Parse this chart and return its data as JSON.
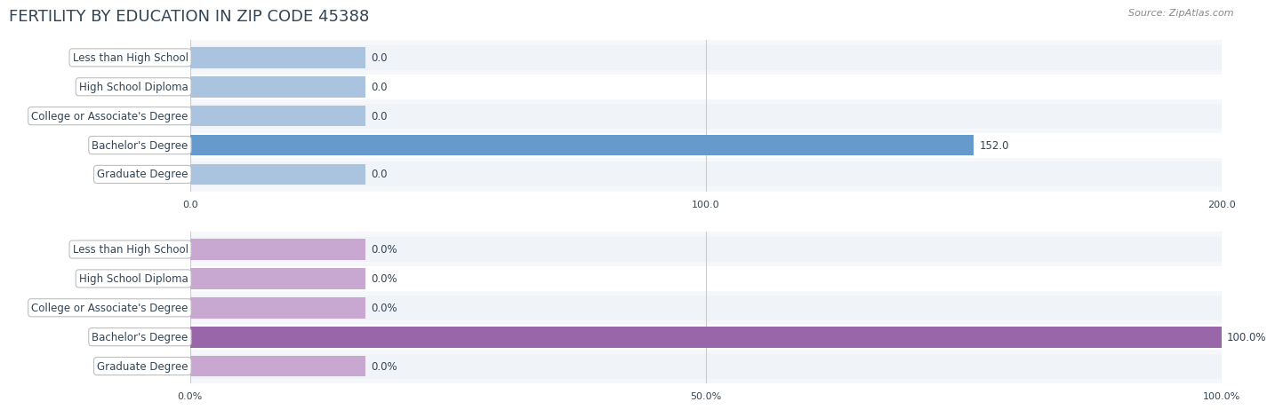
{
  "title": "FERTILITY BY EDUCATION IN ZIP CODE 45388",
  "source": "Source: ZipAtlas.com",
  "categories": [
    "Less than High School",
    "High School Diploma",
    "College or Associate's Degree",
    "Bachelor's Degree",
    "Graduate Degree"
  ],
  "values_count": [
    0.0,
    0.0,
    0.0,
    152.0,
    0.0
  ],
  "values_pct": [
    0.0,
    0.0,
    0.0,
    100.0,
    0.0
  ],
  "xlim_count": [
    0,
    200.0
  ],
  "xlim_pct": [
    0,
    100.0
  ],
  "xticks_count": [
    0.0,
    100.0,
    200.0
  ],
  "xticks_pct": [
    0.0,
    50.0,
    100.0
  ],
  "bar_color_light": "#aac4e0",
  "bar_color_strong_top": "#6699cc",
  "bar_color_light_bottom": "#c8a8d0",
  "bar_color_strong_bottom": "#9966aa",
  "label_bg_color": "#ffffff",
  "label_border_color": "#aaaaaa",
  "row_bg_odd": "#f0f4f8",
  "row_bg_even": "#ffffff",
  "title_color": "#334455",
  "source_color": "#888888",
  "title_fontsize": 13,
  "label_fontsize": 8.5,
  "value_fontsize": 8.5,
  "axis_label_fontsize": 8,
  "grid_color": "#cccccc",
  "fig_bg": "#ffffff"
}
